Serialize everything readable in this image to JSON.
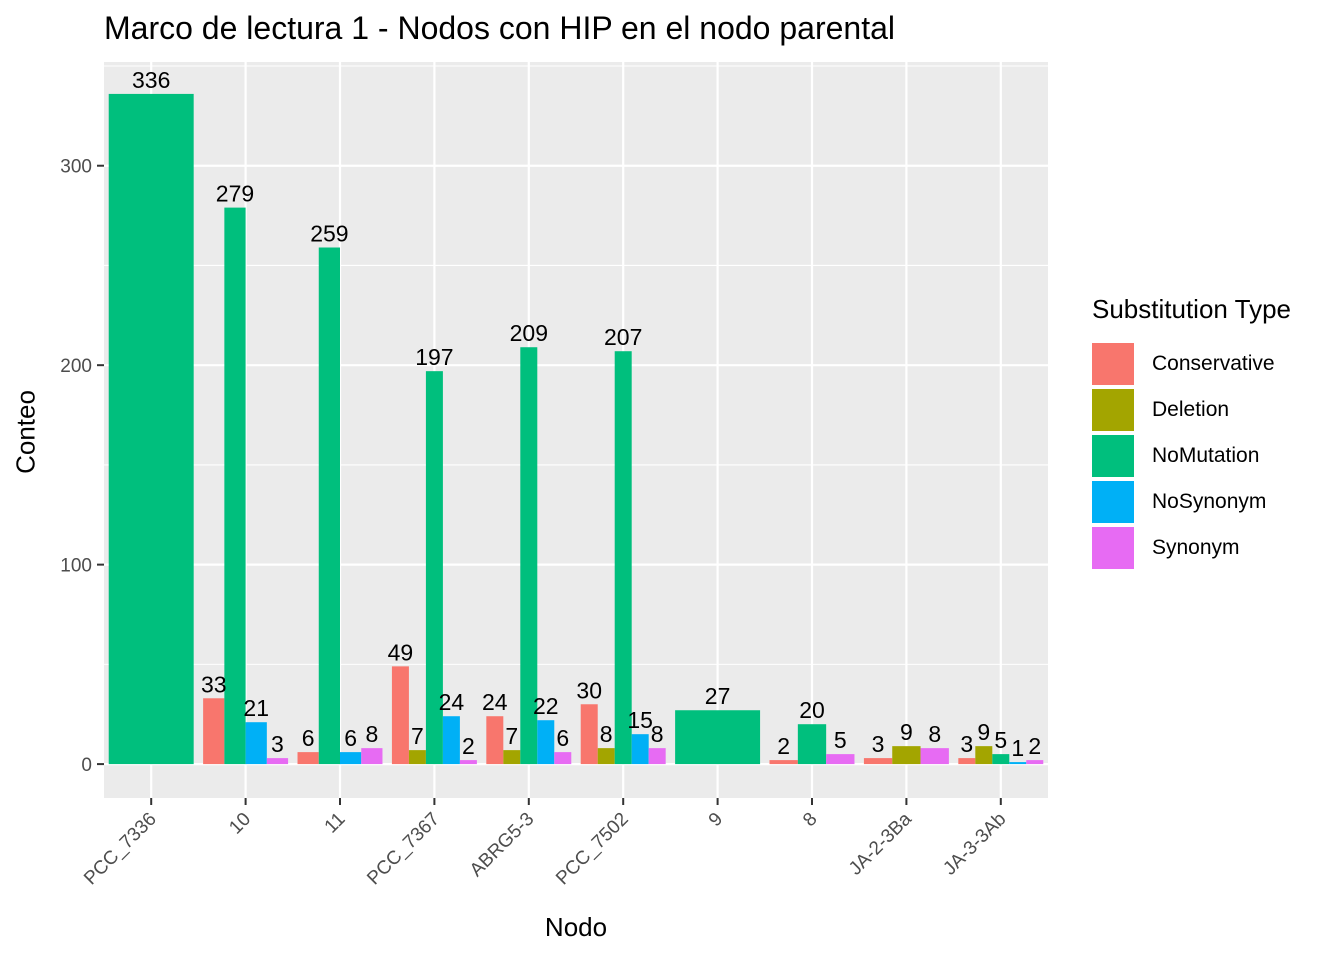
{
  "chart_data": {
    "type": "bar",
    "title": "Marco de lectura 1 - Nodos con HIP en el nodo parental",
    "xlabel": "Nodo",
    "ylabel": "Conteo",
    "ylim": [
      -17,
      352
    ],
    "yticks": [
      0,
      100,
      200,
      300
    ],
    "grid": true,
    "legend": {
      "title": "Substitution Type",
      "position": "right"
    },
    "categories": [
      "PCC_7336",
      "10",
      "11",
      "PCC_7367",
      "ABRG5-3",
      "PCC_7502",
      "9",
      "8",
      "JA-2-3Ba",
      "JA-3-3Ab"
    ],
    "series": [
      {
        "name": "Conservative",
        "color": "#F8766D",
        "values": [
          null,
          33,
          6,
          49,
          24,
          30,
          null,
          2,
          3,
          3
        ]
      },
      {
        "name": "Deletion",
        "color": "#A3A500",
        "values": [
          null,
          null,
          null,
          7,
          7,
          8,
          null,
          null,
          9,
          9
        ]
      },
      {
        "name": "NoMutation",
        "color": "#00BF7D",
        "values": [
          336,
          279,
          259,
          197,
          209,
          207,
          27,
          20,
          null,
          5
        ]
      },
      {
        "name": "NoSynonym",
        "color": "#00B0F6",
        "values": [
          null,
          21,
          6,
          24,
          22,
          15,
          null,
          null,
          null,
          1
        ]
      },
      {
        "name": "Synonym",
        "color": "#E76BF3",
        "values": [
          null,
          3,
          8,
          2,
          6,
          8,
          null,
          5,
          8,
          2
        ]
      }
    ]
  }
}
